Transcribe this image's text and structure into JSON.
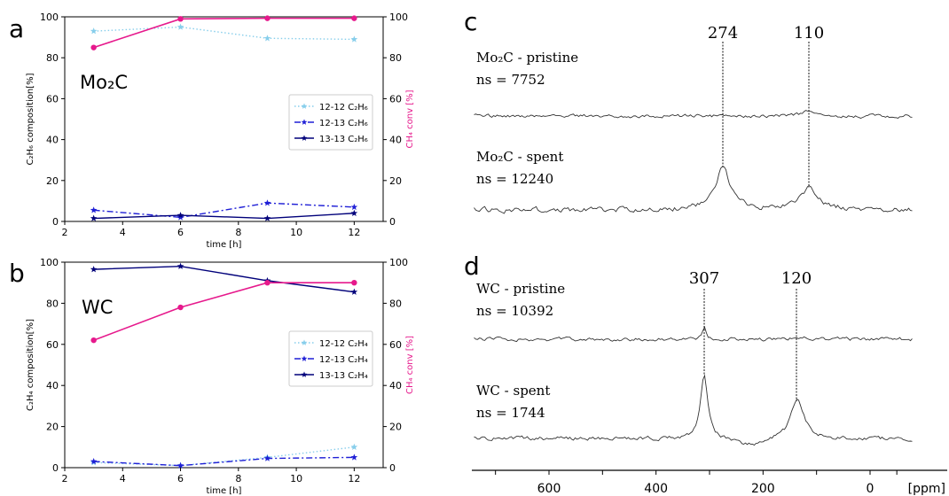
{
  "chart_data": [
    {
      "panel": "a",
      "type": "line",
      "material_label": "Mo₂C",
      "xlabel": "time [h]",
      "ylabel_left": "C₂H₆ composition[%]",
      "ylabel_right": "CH₄ conv [%]",
      "xlim": [
        2,
        13
      ],
      "ylim_left": [
        0,
        100
      ],
      "ylim_right": [
        0,
        100
      ],
      "x_ticks": [
        2,
        4,
        6,
        8,
        10,
        12
      ],
      "y_ticks": [
        0,
        20,
        40,
        60,
        80,
        100
      ],
      "x": [
        3,
        6,
        9,
        12
      ],
      "legend": "center-right",
      "series": [
        {
          "name": "12-12 C₂H₆",
          "axis": "left",
          "values": [
            93,
            95,
            89.5,
            89
          ],
          "color": "#87ceeb",
          "style": "dotted",
          "marker": "star"
        },
        {
          "name": "12-13 C₂H₆",
          "axis": "left",
          "values": [
            5.5,
            2,
            9,
            7
          ],
          "color": "#1f1fd6",
          "style": "dashdot",
          "marker": "star"
        },
        {
          "name": "13-13 C₂H₆",
          "axis": "left",
          "values": [
            1.5,
            3,
            1.5,
            4
          ],
          "color": "#00007a",
          "style": "solid",
          "marker": "star"
        },
        {
          "axis": "right",
          "values": [
            85,
            99,
            99.3,
            99.3
          ],
          "color": "#e6198c",
          "style": "solid",
          "marker": "circle"
        }
      ]
    },
    {
      "panel": "b",
      "type": "line",
      "material_label": "WC",
      "xlabel": "time [h]",
      "ylabel_left": "C₂H₄ composition[%]",
      "ylabel_right": "CH₄ conv [%]",
      "xlim": [
        2,
        13
      ],
      "ylim_left": [
        0,
        100
      ],
      "ylim_right": [
        0,
        100
      ],
      "x_ticks": [
        2,
        4,
        6,
        8,
        10,
        12
      ],
      "y_ticks": [
        0,
        20,
        40,
        60,
        80,
        100
      ],
      "x": [
        3,
        6,
        9,
        12
      ],
      "legend": "center-right",
      "series": [
        {
          "name": "12-12 C₂H₄",
          "axis": "left",
          "values": [
            2.5,
            1,
            5,
            10
          ],
          "color": "#87ceeb",
          "style": "dotted",
          "marker": "star"
        },
        {
          "name": "12-13 C₂H₄",
          "axis": "left",
          "values": [
            3,
            1,
            4.5,
            5
          ],
          "color": "#1f1fd6",
          "style": "dashdot",
          "marker": "star"
        },
        {
          "name": "13-13 C₂H₄",
          "axis": "left",
          "values": [
            96.5,
            98,
            91,
            85.5
          ],
          "color": "#00007a",
          "style": "solid",
          "marker": "star"
        },
        {
          "axis": "right",
          "values": [
            62,
            78,
            90,
            90
          ],
          "color": "#e6198c",
          "style": "solid",
          "marker": "circle"
        }
      ]
    },
    {
      "panel": "c",
      "type": "line",
      "xlim": [
        -80,
        740
      ],
      "x_reversed": true,
      "peaks": [
        "274",
        "110"
      ],
      "spectra": [
        {
          "label": "Mo₂C - pristine",
          "ns": "ns = 7752"
        },
        {
          "label": "Mo₂C - spent",
          "ns": "ns = 12240"
        }
      ]
    },
    {
      "panel": "d",
      "type": "line",
      "xlim": [
        -80,
        740
      ],
      "x_reversed": true,
      "x_ticks": [
        "600",
        "400",
        "200",
        "0"
      ],
      "x_unit": "[ppm]",
      "peaks": [
        "307",
        "120"
      ],
      "spectra": [
        {
          "label": "WC - pristine",
          "ns": "ns = 10392"
        },
        {
          "label": "WC - spent",
          "ns": "ns = 1744"
        }
      ]
    }
  ]
}
